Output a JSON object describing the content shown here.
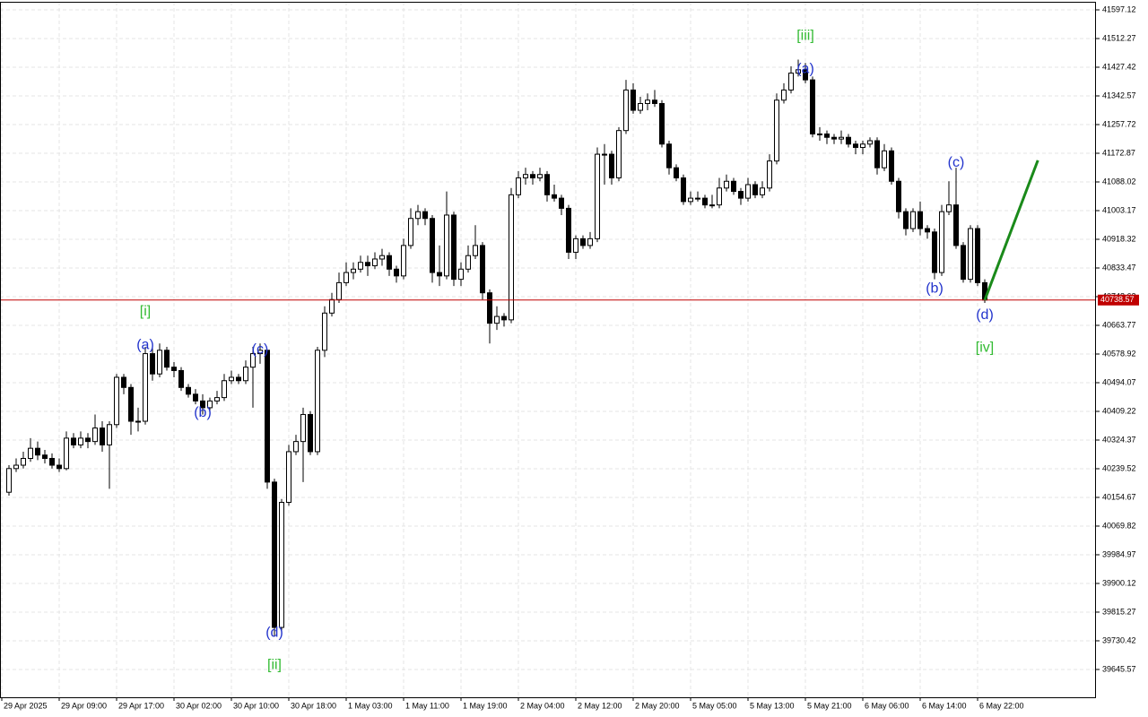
{
  "chart_data": {
    "type": "candlestick",
    "up_color": "#ffffff",
    "down_color": "#000000",
    "grid": true,
    "xlim": [
      -1.25,
      151.5
    ],
    "ylim": [
      39563.3,
      41621.0
    ],
    "yticks": [
      41597.12,
      41512.27,
      41427.42,
      41342.57,
      41257.72,
      41172.87,
      41088.02,
      41003.17,
      40918.32,
      40833.47,
      40748.62,
      40663.77,
      40578.92,
      40494.07,
      40409.22,
      40324.37,
      40239.52,
      40154.67,
      40069.82,
      39984.97,
      39900.12,
      39815.27,
      39730.42,
      39645.57
    ],
    "xticks": [
      {
        "value": 0,
        "label": "29 Apr 2025"
      },
      {
        "value": 8,
        "label": "29 Apr 09:00"
      },
      {
        "value": 16,
        "label": "29 Apr 17:00"
      },
      {
        "value": 24,
        "label": "30 Apr 02:00"
      },
      {
        "value": 32,
        "label": "30 Apr 10:00"
      },
      {
        "value": 40,
        "label": "30 Apr 18:00"
      },
      {
        "value": 48,
        "label": "1 May 03:00"
      },
      {
        "value": 56,
        "label": "1 May 11:00"
      },
      {
        "value": 64,
        "label": "1 May 19:00"
      },
      {
        "value": 72,
        "label": "2 May 04:00"
      },
      {
        "value": 80,
        "label": "2 May 12:00"
      },
      {
        "value": 88,
        "label": "2 May 20:00"
      },
      {
        "value": 96,
        "label": "5 May 05:00"
      },
      {
        "value": 104,
        "label": "5 May 13:00"
      },
      {
        "value": 112,
        "label": "5 May 21:00"
      },
      {
        "value": 120,
        "label": "6 May 06:00"
      },
      {
        "value": 128,
        "label": "6 May 14:00"
      },
      {
        "value": 136,
        "label": "6 May 22:00"
      }
    ],
    "ohlc": [
      [
        40170,
        40250,
        40160,
        40240
      ],
      [
        40240,
        40270,
        40230,
        40250
      ],
      [
        40250,
        40290,
        40240,
        40270
      ],
      [
        40270,
        40330,
        40260,
        40300
      ],
      [
        40300,
        40320,
        40265,
        40280
      ],
      [
        40280,
        40295,
        40255,
        40270
      ],
      [
        40270,
        40285,
        40240,
        40250
      ],
      [
        40250,
        40270,
        40230,
        40240
      ],
      [
        40240,
        40350,
        40235,
        40330
      ],
      [
        40330,
        40345,
        40300,
        40310
      ],
      [
        40310,
        40350,
        40300,
        40330
      ],
      [
        40330,
        40345,
        40300,
        40320
      ],
      [
        40320,
        40400,
        40310,
        40360
      ],
      [
        40360,
        40380,
        40290,
        40310
      ],
      [
        40310,
        40380,
        40180,
        40370
      ],
      [
        40370,
        40520,
        40360,
        40510
      ],
      [
        40510,
        40520,
        40460,
        40480
      ],
      [
        40480,
        40490,
        40340,
        40380
      ],
      [
        40380,
        40420,
        40350,
        40380
      ],
      [
        40380,
        40600,
        40370,
        40580
      ],
      [
        40580,
        40600,
        40500,
        40520
      ],
      [
        40520,
        40610,
        40510,
        40590
      ],
      [
        40590,
        40600,
        40530,
        40540
      ],
      [
        40540,
        40555,
        40510,
        40530
      ],
      [
        40530,
        40540,
        40470,
        40480
      ],
      [
        40480,
        40490,
        40450,
        40460
      ],
      [
        40460,
        40475,
        40430,
        40440
      ],
      [
        40440,
        40460,
        40400,
        40420
      ],
      [
        40420,
        40450,
        40410,
        40440
      ],
      [
        40440,
        40470,
        40430,
        40450
      ],
      [
        40450,
        40520,
        40440,
        40500
      ],
      [
        40500,
        40530,
        40490,
        40510
      ],
      [
        40510,
        40520,
        40490,
        40500
      ],
      [
        40500,
        40560,
        40490,
        40540
      ],
      [
        40540,
        40600,
        40420,
        40580
      ],
      [
        40580,
        40610,
        40550,
        40590
      ],
      [
        40590,
        40590,
        40180,
        40200
      ],
      [
        40200,
        40210,
        39745,
        39770
      ],
      [
        39770,
        40150,
        39760,
        40140
      ],
      [
        40140,
        40310,
        40130,
        40290
      ],
      [
        40290,
        40340,
        40280,
        40320
      ],
      [
        40320,
        40420,
        40200,
        40400
      ],
      [
        40400,
        40410,
        40280,
        40290
      ],
      [
        40290,
        40600,
        40280,
        40590
      ],
      [
        40590,
        40720,
        40570,
        40700
      ],
      [
        40700,
        40760,
        40690,
        40740
      ],
      [
        40740,
        40820,
        40730,
        40790
      ],
      [
        40790,
        40850,
        40780,
        40820
      ],
      [
        40820,
        40850,
        40800,
        40830
      ],
      [
        40830,
        40870,
        40820,
        40850
      ],
      [
        40850,
        40870,
        40810,
        40840
      ],
      [
        40840,
        40880,
        40830,
        40860
      ],
      [
        40860,
        40890,
        40840,
        40870
      ],
      [
        40870,
        40880,
        40810,
        40830
      ],
      [
        40830,
        40840,
        40790,
        40810
      ],
      [
        40810,
        40920,
        40800,
        40900
      ],
      [
        40900,
        41010,
        40890,
        40980
      ],
      [
        40980,
        41020,
        40960,
        41000
      ],
      [
        41000,
        41010,
        40960,
        40980
      ],
      [
        40980,
        40990,
        40790,
        40820
      ],
      [
        40820,
        40900,
        40780,
        40810
      ],
      [
        40810,
        41060,
        40800,
        40990
      ],
      [
        40990,
        41000,
        40780,
        40800
      ],
      [
        40800,
        40850,
        40780,
        40830
      ],
      [
        40830,
        40900,
        40820,
        40870
      ],
      [
        40870,
        40960,
        40860,
        40900
      ],
      [
        40900,
        40910,
        40740,
        40760
      ],
      [
        40760,
        40770,
        40610,
        40670
      ],
      [
        40670,
        40720,
        40650,
        40690
      ],
      [
        40690,
        40700,
        40660,
        40680
      ],
      [
        40680,
        41070,
        40670,
        41050
      ],
      [
        41050,
        41120,
        41040,
        41100
      ],
      [
        41100,
        41130,
        41080,
        41110
      ],
      [
        41110,
        41120,
        41080,
        41100
      ],
      [
        41100,
        41130,
        41090,
        41110
      ],
      [
        41110,
        41120,
        41030,
        41050
      ],
      [
        41050,
        41080,
        41030,
        41040
      ],
      [
        41040,
        41050,
        40990,
        41010
      ],
      [
        41010,
        41020,
        40860,
        40880
      ],
      [
        40880,
        40930,
        40860,
        40920
      ],
      [
        40920,
        40930,
        40890,
        40900
      ],
      [
        40900,
        40940,
        40890,
        40920
      ],
      [
        40920,
        41190,
        40910,
        41170
      ],
      [
        41170,
        41200,
        41080,
        41170
      ],
      [
        41170,
        41180,
        41080,
        41100
      ],
      [
        41100,
        41250,
        41090,
        41240
      ],
      [
        41240,
        41390,
        41230,
        41360
      ],
      [
        41360,
        41380,
        41290,
        41300
      ],
      [
        41300,
        41340,
        41290,
        41320
      ],
      [
        41320,
        41350,
        41300,
        41330
      ],
      [
        41330,
        41360,
        41310,
        41320
      ],
      [
        41320,
        41330,
        41190,
        41200
      ],
      [
        41200,
        41210,
        41110,
        41130
      ],
      [
        41130,
        41140,
        41090,
        41100
      ],
      [
        41100,
        41110,
        41020,
        41030
      ],
      [
        41030,
        41060,
        41020,
        41040
      ],
      [
        41040,
        41060,
        41030,
        41040
      ],
      [
        41040,
        41050,
        41010,
        41020
      ],
      [
        41020,
        41050,
        41010,
        41020
      ],
      [
        41020,
        41100,
        41010,
        41070
      ],
      [
        41070,
        41110,
        41060,
        41090
      ],
      [
        41090,
        41100,
        41050,
        41060
      ],
      [
        41060,
        41070,
        41020,
        41040
      ],
      [
        41040,
        41100,
        41030,
        41080
      ],
      [
        41080,
        41090,
        41040,
        41050
      ],
      [
        41050,
        41090,
        41040,
        41070
      ],
      [
        41070,
        41170,
        41060,
        41150
      ],
      [
        41150,
        41350,
        41140,
        41330
      ],
      [
        41330,
        41380,
        41320,
        41360
      ],
      [
        41360,
        41430,
        41350,
        41410
      ],
      [
        41410,
        41450,
        41400,
        41420
      ],
      [
        41420,
        41440,
        41380,
        41390
      ],
      [
        41390,
        41400,
        41220,
        41230
      ],
      [
        41230,
        41250,
        41210,
        41230
      ],
      [
        41230,
        41240,
        41200,
        41220
      ],
      [
        41220,
        41230,
        41200,
        41215
      ],
      [
        41215,
        41240,
        41200,
        41220
      ],
      [
        41220,
        41230,
        41190,
        41200
      ],
      [
        41200,
        41210,
        41170,
        41190
      ],
      [
        41190,
        41210,
        41170,
        41200
      ],
      [
        41200,
        41220,
        41190,
        41210
      ],
      [
        41210,
        41220,
        41110,
        41130
      ],
      [
        41130,
        41200,
        41120,
        41180
      ],
      [
        41180,
        41190,
        41080,
        41090
      ],
      [
        41090,
        41100,
        40980,
        41000
      ],
      [
        41000,
        41010,
        40930,
        40950
      ],
      [
        40950,
        41010,
        40940,
        41000
      ],
      [
        41000,
        41030,
        40930,
        40950
      ],
      [
        40950,
        40960,
        40920,
        40940
      ],
      [
        40940,
        40950,
        40800,
        40820
      ],
      [
        40820,
        41020,
        40810,
        41000
      ],
      [
        41000,
        41090,
        40990,
        41020
      ],
      [
        41020,
        41130,
        40890,
        40900
      ],
      [
        40900,
        40910,
        40790,
        40800
      ],
      [
        40800,
        40960,
        40790,
        40950
      ],
      [
        40950,
        40960,
        40780,
        40790
      ],
      [
        40790,
        40800,
        40730,
        40738.57
      ]
    ],
    "price_line": {
      "value": 40738.57,
      "color": "#c00000"
    },
    "projection": {
      "color": "#1a8a1a",
      "x": [
        136,
        143.4
      ],
      "y": [
        40738.57,
        41152
      ]
    },
    "annotations": [
      {
        "text": "[i]",
        "x": 19,
        "y": 40704,
        "color": "#33bb33"
      },
      {
        "text": "(a)",
        "x": 19,
        "y": 40605,
        "color": "#2233cc"
      },
      {
        "text": "(b)",
        "x": 27,
        "y": 40404,
        "color": "#2233cc"
      },
      {
        "text": "(c)",
        "x": 35,
        "y": 40592,
        "color": "#2233cc"
      },
      {
        "text": "(d)",
        "x": 37,
        "y": 39754,
        "color": "#2233cc"
      },
      {
        "text": "[ii]",
        "x": 37,
        "y": 39658,
        "color": "#33bb33"
      },
      {
        "text": "[iii]",
        "x": 111,
        "y": 41520,
        "color": "#33bb33"
      },
      {
        "text": "(a)",
        "x": 111,
        "y": 41422,
        "color": "#2233cc"
      },
      {
        "text": "(b)",
        "x": 129,
        "y": 40772,
        "color": "#2233cc"
      },
      {
        "text": "(c)",
        "x": 132,
        "y": 41144,
        "color": "#2233cc"
      },
      {
        "text": "(d)",
        "x": 136,
        "y": 40693,
        "color": "#2233cc"
      },
      {
        "text": "[iv]",
        "x": 136,
        "y": 40597,
        "color": "#33bb33"
      }
    ]
  }
}
